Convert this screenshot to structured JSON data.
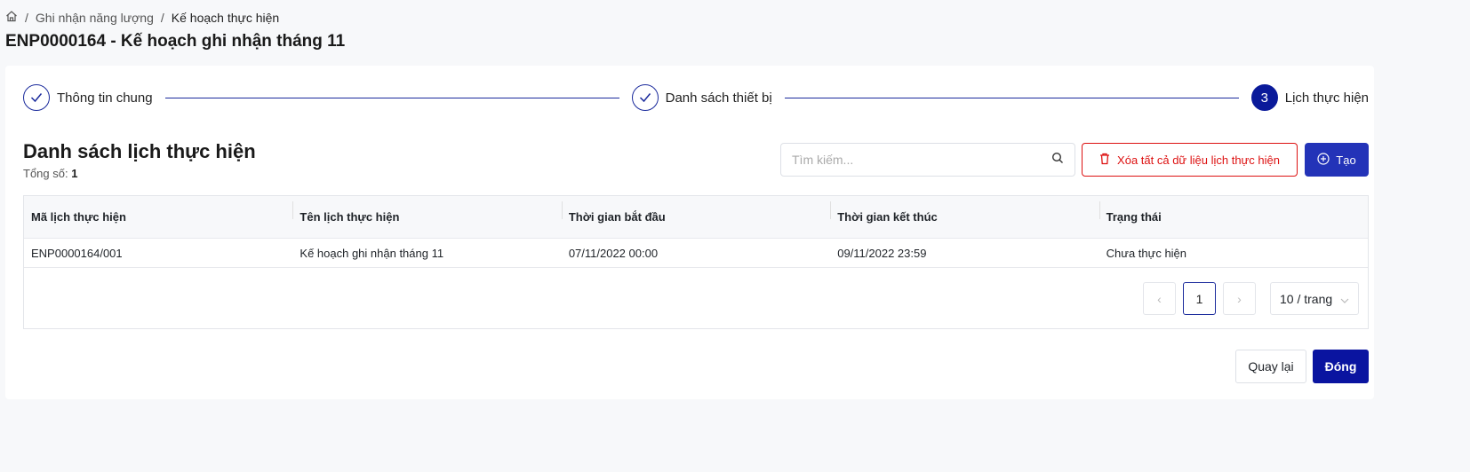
{
  "breadcrumb": {
    "items": [
      "Ghi nhận năng lượng",
      "Kế hoạch thực hiện"
    ]
  },
  "page_title": "ENP0000164 - Kế hoạch ghi nhận tháng 11",
  "steps": [
    {
      "label": "Thông tin chung",
      "status": "done"
    },
    {
      "label": "Danh sách thiết bị",
      "status": "done"
    },
    {
      "number": "3",
      "label": "Lịch thực hiện",
      "status": "active"
    }
  ],
  "section": {
    "title": "Danh sách lịch thực hiện",
    "total_label": "Tổng số:",
    "total": "1"
  },
  "search": {
    "placeholder": "Tìm kiếm...",
    "value": ""
  },
  "buttons": {
    "delete_all": "Xóa tất cả dữ liệu lịch thực hiện",
    "create": "Tạo",
    "back": "Quay lại",
    "close": "Đóng"
  },
  "table": {
    "columns": [
      "Mã lịch thực hiện",
      "Tên lịch thực hiện",
      "Thời gian bắt đầu",
      "Thời gian kết thúc",
      "Trạng thái"
    ],
    "rows": [
      [
        "ENP0000164/001",
        "Kế hoạch ghi nhận tháng 11",
        "07/11/2022 00:00",
        "09/11/2022 23:59",
        "Chưa thực hiện"
      ]
    ]
  },
  "pagination": {
    "current_page": "1",
    "page_size": "10 / trang"
  },
  "colors": {
    "primary": "#0a14a0",
    "danger": "#dd1111",
    "accent": "#2333b8"
  }
}
